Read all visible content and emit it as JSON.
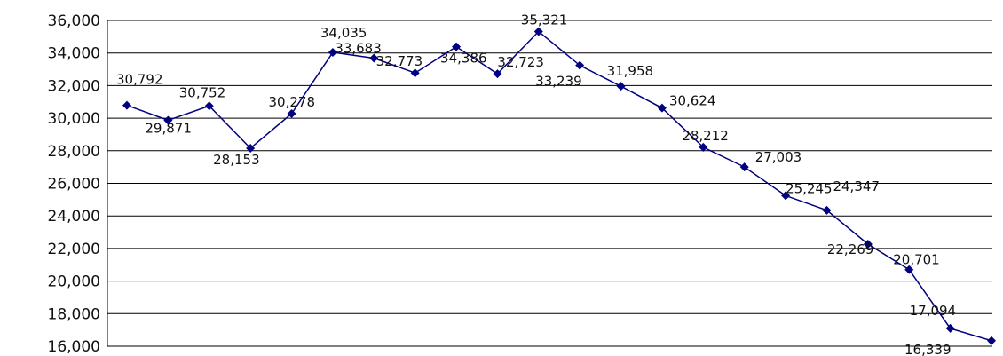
{
  "chart_data": {
    "type": "line",
    "title": "",
    "xlabel": "",
    "ylabel": "",
    "ylim": [
      16000,
      36000
    ],
    "y_tick_step": 2000,
    "y_tick_labels": [
      "16,000",
      "18,000",
      "20,000",
      "22,000",
      "24,000",
      "26,000",
      "28,000",
      "30,000",
      "32,000",
      "34,000",
      "36,000"
    ],
    "grid": true,
    "legend": "none",
    "line_color": "#000080",
    "series": [
      {
        "values": [
          30792,
          29871,
          30752,
          28153,
          30278,
          34035,
          33683,
          32773,
          34386,
          32723,
          35321,
          33239,
          31958,
          30624,
          28212,
          27003,
          25245,
          24347,
          22269,
          20701,
          17094,
          16339
        ],
        "labels": [
          "30,792",
          "29,871",
          "30,752",
          "28,153",
          "30,278",
          "34,035",
          "33,683",
          "32,773",
          "34,386",
          "32,723",
          "35,321",
          "33,239",
          "31,958",
          "30,624",
          "28,212",
          "27,003",
          "25,245",
          "24,347",
          "22,269",
          "20,701",
          "17,094",
          "16,339"
        ]
      }
    ]
  }
}
